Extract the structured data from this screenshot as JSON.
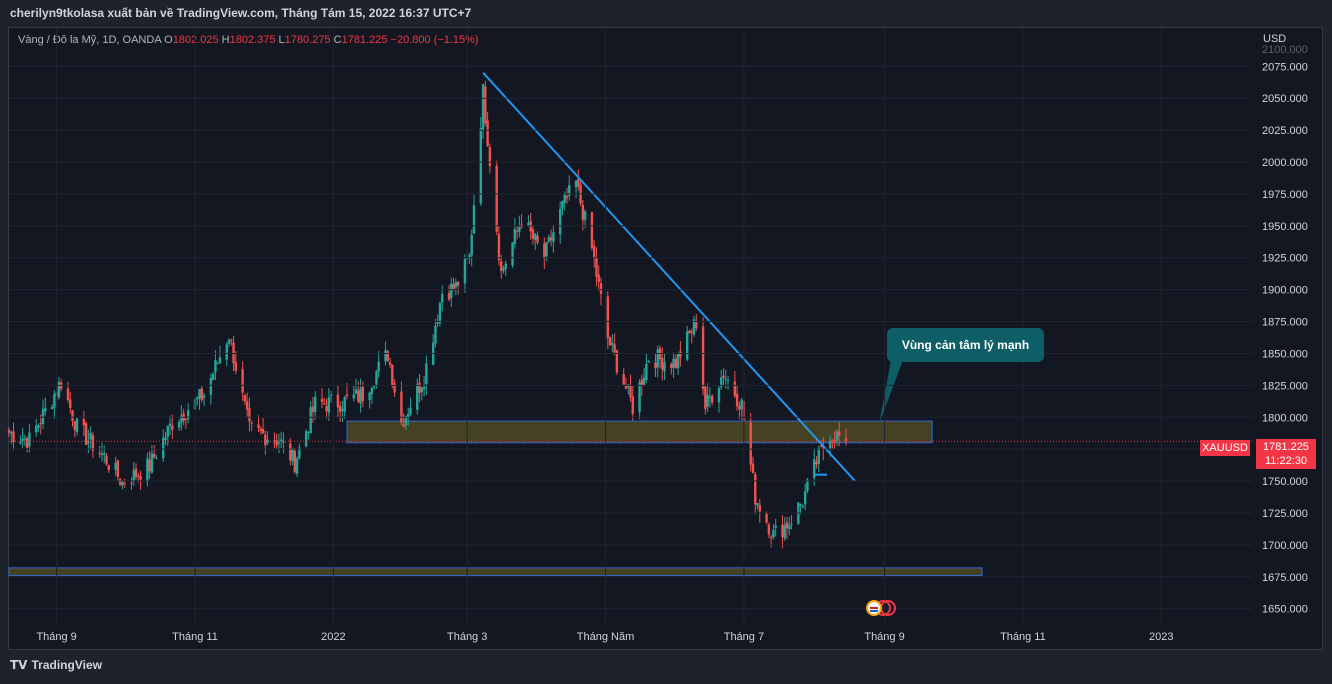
{
  "header": {
    "caption": "cherilyn9tkolasa xuất bản về TradingView.com, Tháng Tám 15, 2022 16:37 UTC+7"
  },
  "symbol": {
    "name": "Vàng / Đô la Mỹ, 1D, OANDA",
    "open_label": "O",
    "open": "1802.025",
    "high_label": "H",
    "high": "1802.375",
    "low_label": "L",
    "low": "1780.275",
    "close_label": "C",
    "close": "1781.225",
    "change": "−20.800 (−1.15%)"
  },
  "price_axis": {
    "currency": "USD",
    "tag_symbol": "XAUUSD",
    "last_price": "1781.225",
    "countdown": "11:22:30"
  },
  "annotation": {
    "callout_text": "Vùng cản tâm lý mạnh"
  },
  "footer": {
    "brand": "TradingView"
  },
  "colors": {
    "up": "#26a69a",
    "down": "#ef5350",
    "trendline": "#2196f3",
    "zone_fill": "#4e4a22",
    "zone_border": "#3566d1",
    "callout": "#0d5e66",
    "last_price": "#f23645"
  },
  "chart_data": {
    "type": "candlestick",
    "y_ticks": [
      1650,
      1675,
      1700,
      1725,
      1750,
      1775,
      1800,
      1825,
      1850,
      1875,
      1900,
      1925,
      1950,
      1975,
      2000,
      2025,
      2050,
      2075,
      2100
    ],
    "y_tick_labels": [
      "1650.000",
      "1675.000",
      "1700.000",
      "1725.000",
      "1750.000",
      "1775.000",
      "1800.000",
      "1825.000",
      "1850.000",
      "1875.000",
      "1900.000",
      "1925.000",
      "1950.000",
      "1975.000",
      "2000.000",
      "2025.000",
      "2050.000",
      "2075.000",
      "2100.000"
    ],
    "ylim": [
      1638,
      2105
    ],
    "x_labels": [
      "Tháng 9",
      "Tháng 11",
      "2022",
      "Tháng 3",
      "Tháng Năm",
      "Tháng 7",
      "Tháng 9",
      "Tháng 11",
      "2023"
    ],
    "x_label_dates": [
      "2021-09-01",
      "2021-11-01",
      "2022-01-01",
      "2022-03-01",
      "2022-05-01",
      "2022-07-01",
      "2022-09-01",
      "2022-11-01",
      "2023-01-01"
    ],
    "xlim": [
      "2021-08-11",
      "2023-02-10"
    ],
    "close_path": [
      [
        "2021-08-11",
        1788
      ],
      [
        "2021-08-20",
        1782
      ],
      [
        "2021-09-03",
        1828
      ],
      [
        "2021-09-10",
        1792
      ],
      [
        "2021-09-22",
        1769
      ],
      [
        "2021-09-30",
        1749
      ],
      [
        "2021-10-12",
        1762
      ],
      [
        "2021-10-22",
        1796
      ],
      [
        "2021-11-05",
        1818
      ],
      [
        "2021-11-16",
        1865
      ],
      [
        "2021-11-25",
        1790
      ],
      [
        "2021-12-08",
        1782
      ],
      [
        "2021-12-15",
        1765
      ],
      [
        "2021-12-24",
        1810
      ],
      [
        "2022-01-05",
        1812
      ],
      [
        "2022-01-14",
        1818
      ],
      [
        "2022-01-25",
        1850
      ],
      [
        "2022-01-31",
        1796
      ],
      [
        "2022-02-10",
        1832
      ],
      [
        "2022-02-18",
        1898
      ],
      [
        "2022-02-24",
        1902
      ],
      [
        "2022-03-02",
        1925
      ],
      [
        "2022-03-08",
        2055
      ],
      [
        "2022-03-16",
        1913
      ],
      [
        "2022-03-25",
        1955
      ],
      [
        "2022-04-04",
        1925
      ],
      [
        "2022-04-12",
        1965
      ],
      [
        "2022-04-18",
        1983
      ],
      [
        "2022-04-25",
        1932
      ],
      [
        "2022-05-02",
        1862
      ],
      [
        "2022-05-13",
        1808
      ],
      [
        "2022-05-20",
        1847
      ],
      [
        "2022-06-01",
        1843
      ],
      [
        "2022-06-10",
        1875
      ],
      [
        "2022-06-14",
        1808
      ],
      [
        "2022-06-22",
        1835
      ],
      [
        "2022-06-30",
        1810
      ],
      [
        "2022-07-06",
        1738
      ],
      [
        "2022-07-14",
        1708
      ],
      [
        "2022-07-21",
        1718
      ],
      [
        "2022-07-27",
        1735
      ],
      [
        "2022-08-02",
        1765
      ],
      [
        "2022-08-08",
        1788
      ],
      [
        "2022-08-15",
        1781
      ]
    ],
    "trendline": [
      [
        "2022-03-08",
        2070
      ],
      [
        "2022-08-19",
        1750
      ]
    ],
    "zones": [
      {
        "start": "2022-01-07",
        "end": "2022-09-22",
        "low": 1780,
        "high": 1797
      },
      {
        "start": "2021-08-11",
        "end": "2022-10-14",
        "low": 1676,
        "high": 1682
      }
    ]
  }
}
